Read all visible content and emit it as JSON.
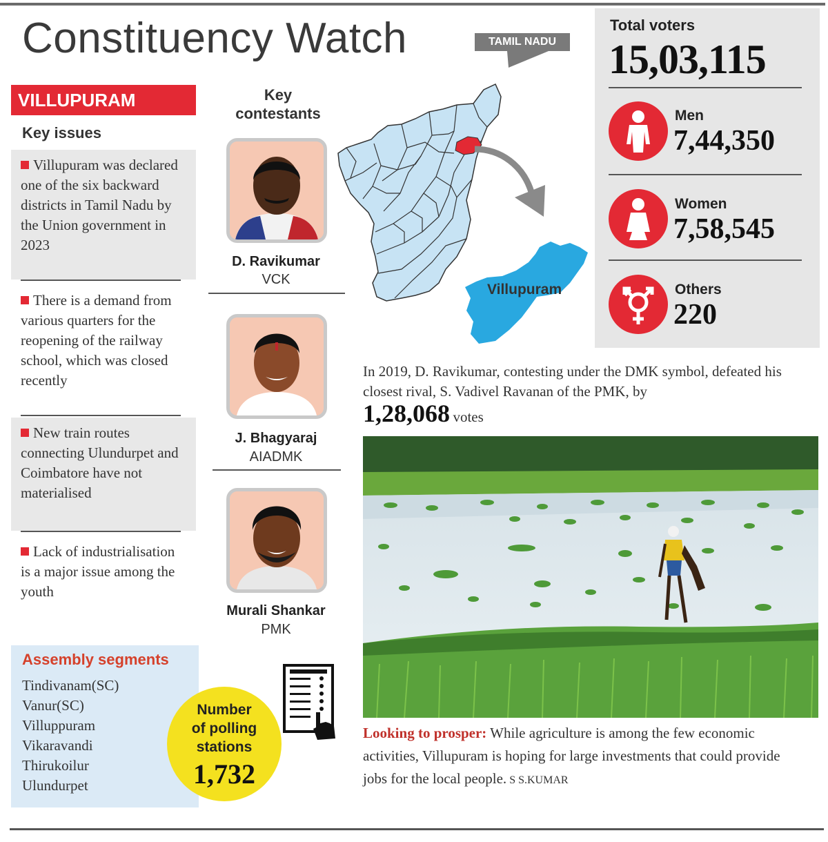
{
  "header": {
    "title": "Constituency Watch",
    "state_tag": "TAMIL NADU"
  },
  "constituency": "VILLUPURAM",
  "key_issues": {
    "heading": "Key issues",
    "items": [
      "Villupuram was declared one of the six backward districts in Tamil Nadu by the Union government in 2023",
      "There is a demand from various quarters for the reopening of the railway school, which was closed recently",
      "New train routes connecting Ulundurpet and Coimbatore have not materialised",
      "Lack of industrialisation is a major issue among the youth"
    ]
  },
  "contestants": {
    "heading_line1": "Key",
    "heading_line2": "contestants",
    "items": [
      {
        "name": "D. Ravikumar",
        "party": "VCK"
      },
      {
        "name": "J. Bhagyaraj",
        "party": "AIADMK"
      },
      {
        "name": "Murali Shankar",
        "party": "PMK"
      }
    ]
  },
  "assembly_segments": {
    "heading": "Assembly segments",
    "items": [
      "Tindivanam(SC)",
      "Vanur(SC)",
      "Villuppuram",
      "Vikaravandi",
      "Thirukoilur",
      "Ulundurpet"
    ]
  },
  "polling": {
    "label_line1": "Number",
    "label_line2": "of polling",
    "label_line3": "stations",
    "value": "1,732"
  },
  "map": {
    "highlight_label": "Villupuram"
  },
  "voters": {
    "total_label": "Total voters",
    "total_value": "15,03,115",
    "groups": [
      {
        "label": "Men",
        "value": "7,44,350",
        "icon": "male-icon"
      },
      {
        "label": "Women",
        "value": "7,58,545",
        "icon": "female-icon"
      },
      {
        "label": "Others",
        "value": "220",
        "icon": "transgender-icon"
      }
    ]
  },
  "result_2019": {
    "text": "In 2019, D. Ravikumar, contesting under the DMK symbol, defeated his closest rival, S. Vadivel Ravanan of the PMK, by",
    "margin": "1,28,068",
    "unit": "votes"
  },
  "caption": {
    "lead": "Looking to prosper:",
    "text": " While agriculture is among the few economic activities, Villupuram is hoping for large investments that could provide jobs for the local people.",
    "credit": " S S.KUMAR"
  },
  "colors": {
    "accent_red": "#e32934",
    "segment_heading": "#d5412b",
    "polling_yellow": "#f4e11f",
    "map_blue": "#c7e3f4",
    "villupuram_blue": "#29a8e0",
    "panel_grey": "#e6e6e6"
  }
}
